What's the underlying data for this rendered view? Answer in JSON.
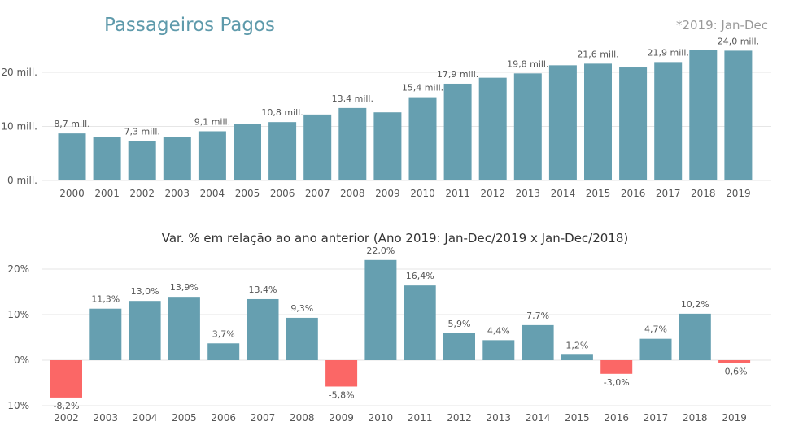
{
  "header": {
    "title": "Passageiros Pagos",
    "note": "*2019: Jan-Dec"
  },
  "colors": {
    "bar": "#669fb0",
    "negative": "#fb6766",
    "grid": "#e6e6e6"
  },
  "chart_data": [
    {
      "type": "bar",
      "title": "Passageiros Pagos",
      "ylim": [
        0,
        25
      ],
      "yunit": "mill.",
      "yticks": [
        "0 mill.",
        "10 mill.",
        "20 mill."
      ],
      "ytick_values": [
        0,
        10,
        20
      ],
      "categories": [
        "2000",
        "2001",
        "2002",
        "2003",
        "2004",
        "2005",
        "2006",
        "2007",
        "2008",
        "2009",
        "2010",
        "2011",
        "2012",
        "2013",
        "2014",
        "2015",
        "2016",
        "2017",
        "2018",
        "2019"
      ],
      "values": [
        8.7,
        8.0,
        7.3,
        8.1,
        9.1,
        10.4,
        10.8,
        12.2,
        13.4,
        12.6,
        15.4,
        17.9,
        19.0,
        19.8,
        21.3,
        21.6,
        20.9,
        21.9,
        24.1,
        24.0
      ],
      "labels": [
        "8,7 mill.",
        "",
        "7,3 mill.",
        "",
        "9,1 mill.",
        "",
        "10,8 mill.",
        "",
        "13,4 mill.",
        "",
        "15,4 mill.",
        "17,9 mill.",
        "",
        "19,8 mill.",
        "",
        "21,6 mill.",
        "",
        "21,9 mill.",
        "",
        "24,0 mill."
      ]
    },
    {
      "type": "bar",
      "title": "Var. % em relação ao ano anterior (Ano 2019: Jan-Dec/2019 x Jan-Dec/2018)",
      "ylim": [
        -10,
        22
      ],
      "yticks": [
        "-10%",
        "0%",
        "10%",
        "20%"
      ],
      "ytick_values": [
        -10,
        0,
        10,
        20
      ],
      "categories": [
        "2002",
        "2003",
        "2004",
        "2005",
        "2006",
        "2007",
        "2008",
        "2009",
        "2010",
        "2011",
        "2012",
        "2013",
        "2014",
        "2015",
        "2016",
        "2017",
        "2018",
        "2019"
      ],
      "values": [
        -8.2,
        11.3,
        13.0,
        13.9,
        3.7,
        13.4,
        9.3,
        -5.8,
        22.0,
        16.4,
        5.9,
        4.4,
        7.7,
        1.2,
        -3.0,
        4.7,
        10.2,
        -0.6
      ],
      "labels": [
        "-8,2%",
        "11,3%",
        "13,0%",
        "13,9%",
        "3,7%",
        "13,4%",
        "9,3%",
        "-5,8%",
        "22,0%",
        "16,4%",
        "5,9%",
        "4,4%",
        "7,7%",
        "1,2%",
        "-3,0%",
        "4,7%",
        "10,2%",
        "-0,6%"
      ]
    }
  ]
}
